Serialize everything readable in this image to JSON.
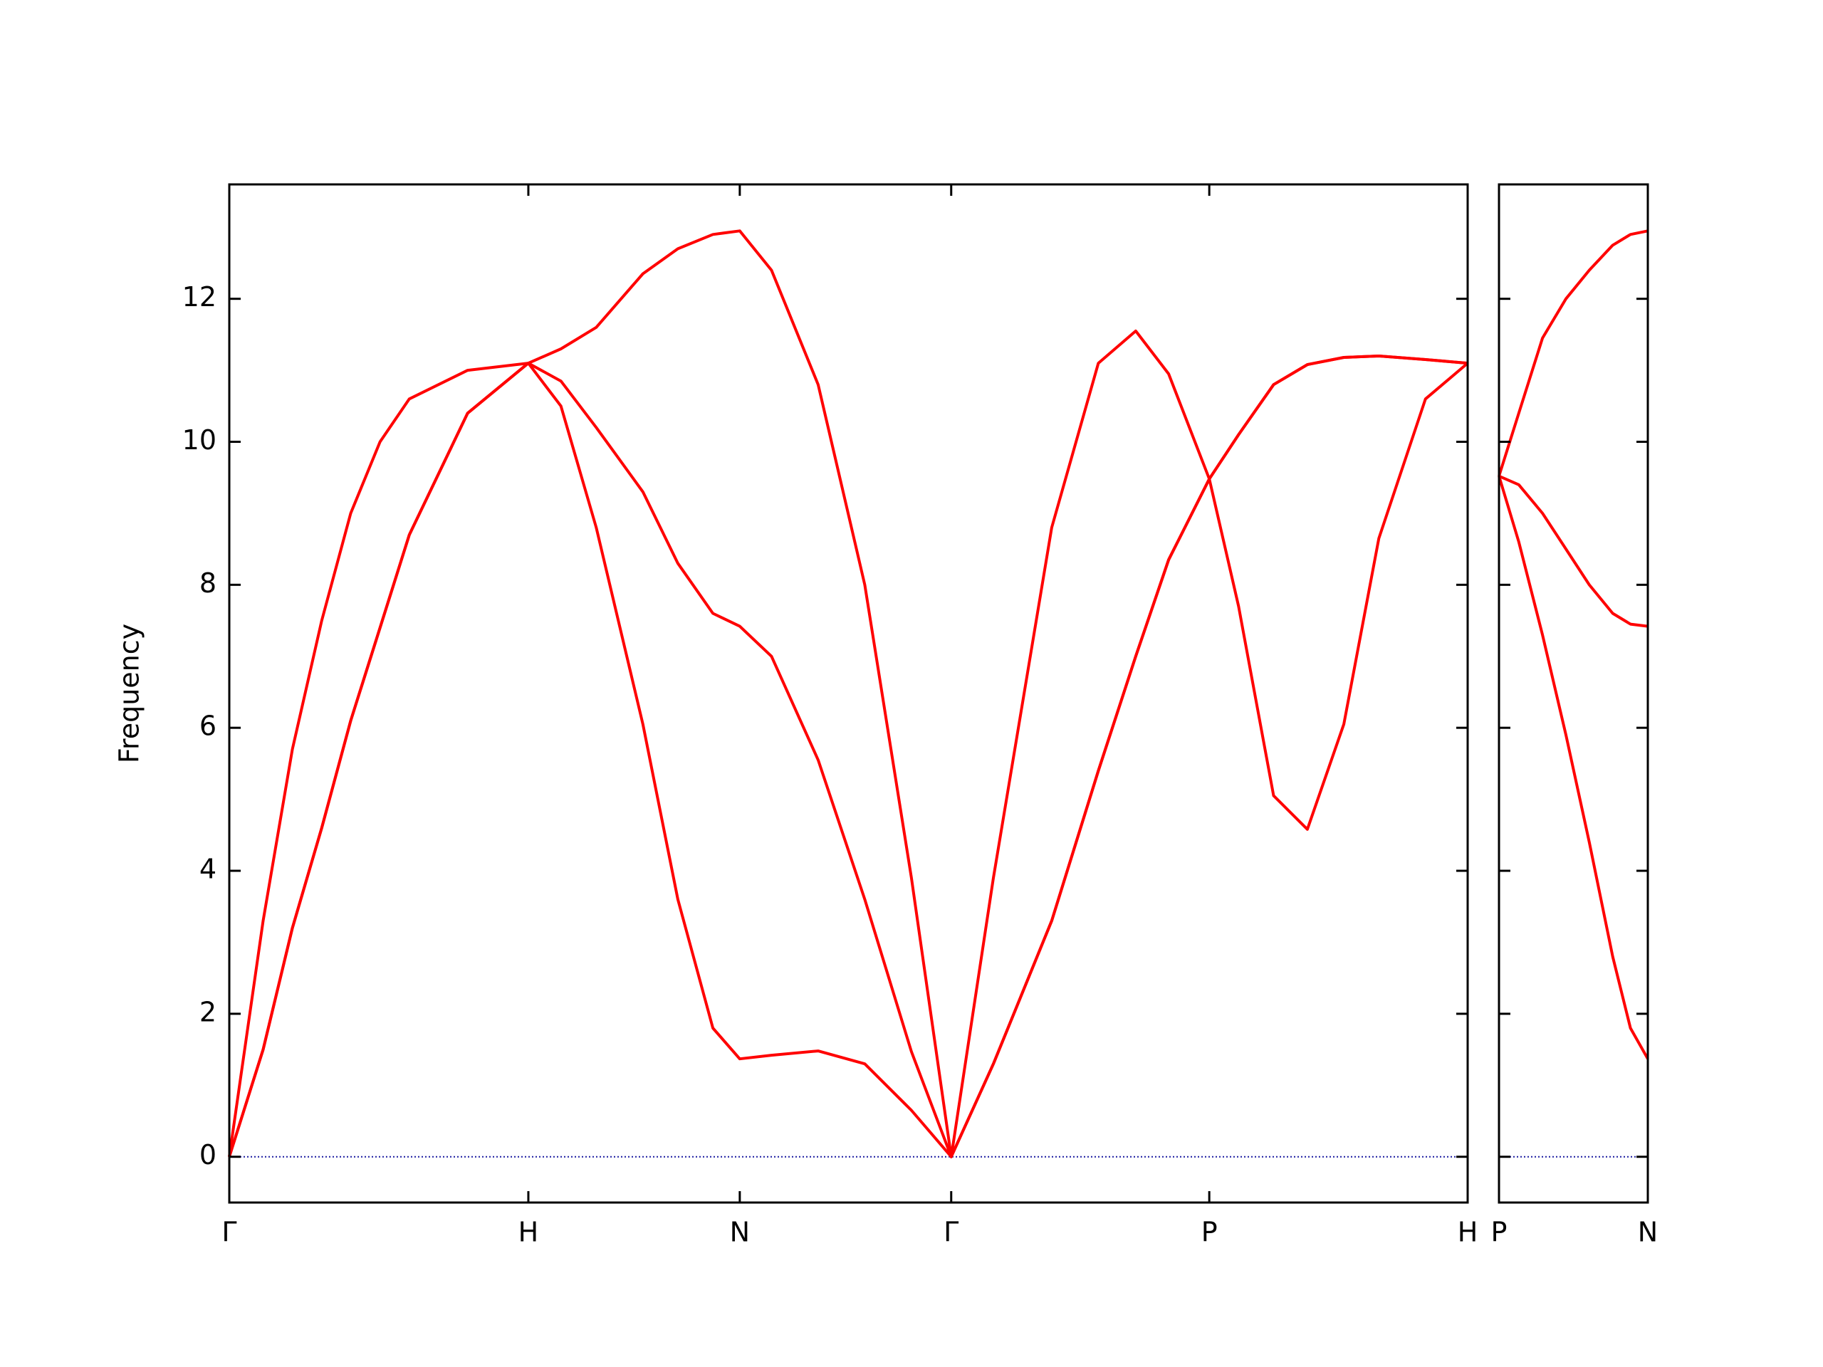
{
  "chart_data": [
    {
      "type": "line",
      "ylabel": "Frequency",
      "x": [
        0,
        0.113,
        0.211,
        0.309,
        0.406,
        0.504,
        0.602,
        0.797,
        1.0,
        1.109,
        1.227,
        1.383,
        1.5,
        1.617,
        1.707,
        1.813,
        1.969,
        2.125,
        2.281,
        2.414,
        2.555,
        2.75,
        2.906,
        3.031,
        3.141,
        3.277,
        3.375,
        3.492,
        3.605,
        3.727,
        3.844,
        4.0,
        4.141
      ],
      "xlim": [
        0,
        4.141
      ],
      "xticks": [
        {
          "value": 0,
          "label": "Γ"
        },
        {
          "value": 1.0,
          "label": "H"
        },
        {
          "value": 1.707,
          "label": "N"
        },
        {
          "value": 2.414,
          "label": "Γ"
        },
        {
          "value": 3.277,
          "label": "P"
        },
        {
          "value": 4.141,
          "label": "H"
        }
      ],
      "ylim": [
        -0.64,
        13.6
      ],
      "yticks": [
        0,
        2,
        4,
        6,
        8,
        10,
        12
      ],
      "ytick_labels": true,
      "hline": {
        "y": 0,
        "color": "#1a1aa0",
        "style": "dotted"
      },
      "series": [
        {
          "color": "#ff0000",
          "values": [
            0,
            3.3,
            5.7,
            7.5,
            9.0,
            10.0,
            10.6,
            11.0,
            11.1,
            11.3,
            11.6,
            12.35,
            12.7,
            12.9,
            12.95,
            12.4,
            10.8,
            8.0,
            3.9,
            0,
            3.9,
            8.8,
            11.1,
            11.55,
            10.95,
            9.48,
            7.7,
            5.05,
            4.58,
            6.05,
            8.65,
            10.6,
            11.1
          ]
        },
        {
          "color": "#ff0000",
          "values": [
            0,
            1.5,
            3.2,
            4.6,
            6.1,
            7.4,
            8.7,
            10.4,
            11.1,
            10.85,
            10.2,
            9.3,
            8.3,
            7.6,
            7.42,
            7.0,
            5.55,
            3.6,
            1.47,
            0,
            1.3,
            3.3,
            5.4,
            7.0,
            8.35,
            9.48,
            10.1,
            10.8,
            11.08,
            11.18,
            11.2,
            11.15,
            11.1
          ]
        },
        {
          "color": "#ff0000",
          "values": [
            0,
            1.5,
            3.2,
            4.6,
            6.1,
            7.4,
            8.7,
            10.4,
            11.1,
            10.5,
            8.8,
            6.05,
            3.6,
            1.8,
            1.37,
            1.42,
            1.48,
            1.3,
            0.65,
            0,
            1.3,
            3.3,
            5.4,
            7.0,
            8.35,
            9.48,
            10.1,
            10.8,
            11.08,
            11.18,
            11.2,
            11.15,
            11.1
          ]
        }
      ]
    },
    {
      "type": "line",
      "x": [
        0,
        0.066,
        0.145,
        0.223,
        0.301,
        0.379,
        0.438,
        0.496
      ],
      "xlim": [
        0,
        0.496
      ],
      "xticks": [
        {
          "value": 0,
          "label": "P"
        },
        {
          "value": 0.496,
          "label": "N"
        }
      ],
      "ylim": [
        -0.64,
        13.6
      ],
      "yticks": [
        0,
        2,
        4,
        6,
        8,
        10,
        12
      ],
      "ytick_labels": false,
      "hline": {
        "y": 0,
        "color": "#1a1aa0",
        "style": "dotted"
      },
      "series": [
        {
          "color": "#ff0000",
          "values": [
            9.52,
            10.4,
            11.45,
            12.0,
            12.4,
            12.75,
            12.9,
            12.95
          ]
        },
        {
          "color": "#ff0000",
          "values": [
            9.52,
            9.4,
            9.0,
            8.5,
            8.0,
            7.6,
            7.45,
            7.42
          ]
        },
        {
          "color": "#ff0000",
          "values": [
            9.52,
            8.6,
            7.3,
            5.9,
            4.4,
            2.8,
            1.8,
            1.37
          ]
        }
      ]
    }
  ]
}
